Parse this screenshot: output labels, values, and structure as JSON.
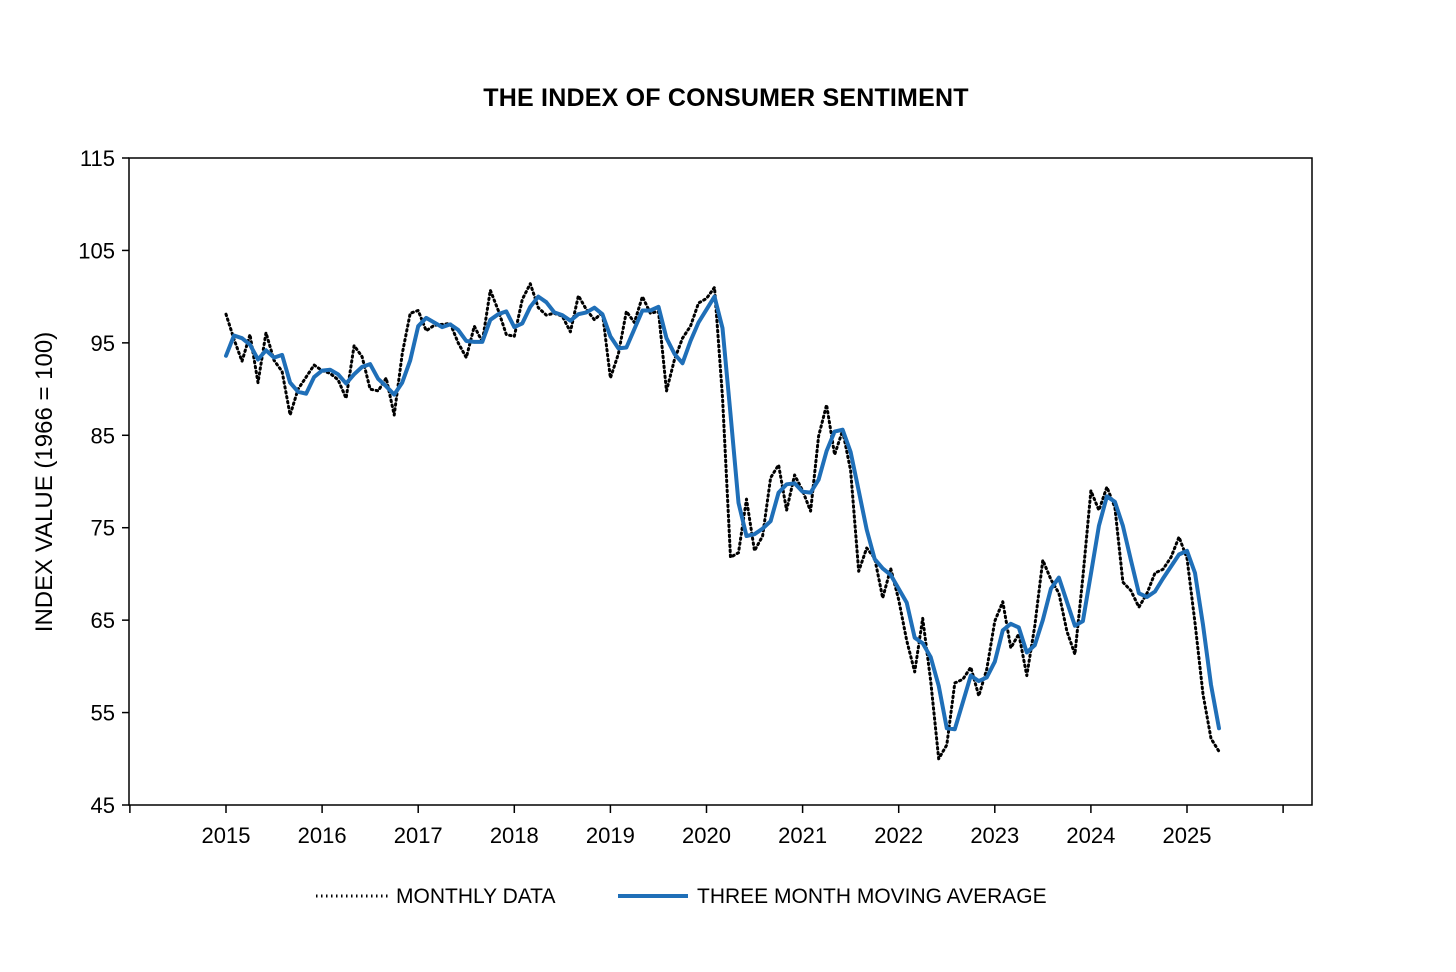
{
  "chart_data": {
    "type": "line",
    "title": "THE INDEX OF CONSUMER SENTIMENT",
    "ylabel": "INDEX VALUE (1966 = 100)",
    "xlabel": "",
    "ylim": [
      45,
      115
    ],
    "y_ticks": [
      45,
      55,
      65,
      75,
      85,
      95,
      105,
      115
    ],
    "x_ticks": [
      "2015",
      "2016",
      "2017",
      "2018",
      "2019",
      "2020",
      "2021",
      "2022",
      "2023",
      "2024",
      "2025"
    ],
    "grid": false,
    "legend_position": "bottom",
    "colors": {
      "monthly": "#000000",
      "moving_average": "#1f6fb8"
    },
    "series": [
      {
        "name": "MONTHLY DATA",
        "style": "dotted",
        "start": "2015-01",
        "values": [
          98.1,
          95.4,
          93.0,
          95.9,
          90.7,
          96.1,
          93.1,
          91.9,
          87.2,
          90.0,
          91.3,
          92.6,
          92.0,
          91.7,
          91.0,
          89.0,
          94.7,
          93.5,
          90.0,
          89.8,
          91.2,
          87.2,
          93.8,
          98.2,
          98.5,
          96.3,
          96.9,
          97.0,
          97.1,
          95.0,
          93.4,
          96.8,
          95.1,
          100.7,
          98.5,
          95.9,
          95.7,
          99.7,
          101.4,
          98.8,
          98.0,
          98.2,
          97.9,
          96.2,
          100.1,
          98.6,
          97.5,
          98.3,
          91.2,
          93.8,
          98.4,
          97.2,
          100.0,
          98.2,
          98.4,
          89.8,
          93.2,
          95.5,
          96.8,
          99.3,
          99.8,
          101.0,
          89.1,
          71.8,
          72.3,
          78.1,
          72.5,
          74.1,
          80.4,
          81.8,
          76.9,
          80.7,
          79.0,
          76.8,
          84.9,
          88.3,
          82.9,
          85.5,
          81.2,
          70.3,
          72.8,
          71.7,
          67.4,
          70.6,
          67.2,
          62.8,
          59.4,
          65.2,
          58.4,
          50.0,
          51.5,
          58.2,
          58.6,
          59.9,
          56.8,
          59.7,
          64.9,
          67.0,
          62.0,
          63.5,
          59.0,
          64.4,
          71.5,
          69.4,
          67.9,
          63.8,
          61.3,
          69.7,
          79.0,
          76.9,
          79.4,
          77.2,
          69.1,
          68.2,
          66.4,
          67.9,
          70.1,
          70.5,
          71.8,
          74.0,
          71.7,
          64.7,
          57.0,
          52.2,
          50.8
        ]
      },
      {
        "name": "THREE MONTH MOVING AVERAGE",
        "style": "solid",
        "start": "2015-01",
        "values": [
          93.6,
          95.8,
          95.5,
          94.8,
          93.2,
          94.2,
          93.4,
          93.7,
          90.7,
          89.7,
          89.5,
          91.3,
          92.0,
          92.1,
          91.6,
          90.6,
          91.6,
          92.4,
          92.7,
          91.1,
          90.3,
          89.4,
          90.7,
          93.1,
          96.8,
          97.7,
          97.2,
          96.7,
          97.0,
          96.4,
          95.2,
          95.1,
          95.1,
          97.5,
          98.1,
          98.4,
          96.7,
          97.1,
          98.9,
          100.0,
          99.4,
          98.3,
          98.0,
          97.4,
          98.1,
          98.3,
          98.8,
          98.1,
          95.7,
          94.4,
          94.5,
          96.5,
          98.5,
          98.5,
          98.9,
          95.5,
          93.8,
          92.8,
          95.2,
          97.2,
          98.6,
          100.0,
          96.6,
          87.3,
          77.7,
          74.1,
          74.3,
          74.9,
          75.7,
          78.8,
          79.7,
          79.8,
          78.9,
          78.8,
          80.2,
          83.3,
          85.4,
          85.6,
          83.2,
          79.0,
          74.8,
          71.6,
          70.6,
          69.9,
          68.4,
          66.9,
          63.1,
          62.5,
          61.0,
          57.9,
          53.3,
          53.2,
          56.1,
          59.0,
          58.4,
          58.8,
          60.5,
          63.9,
          64.6,
          64.2,
          61.5,
          62.3,
          65.0,
          68.4,
          69.6,
          67.0,
          64.4,
          64.9,
          70.0,
          75.2,
          78.4,
          77.8,
          75.2,
          71.5,
          67.9,
          67.5,
          68.1,
          69.5,
          70.8,
          72.1,
          72.5,
          70.1,
          64.5,
          58.0,
          53.3
        ]
      }
    ]
  }
}
